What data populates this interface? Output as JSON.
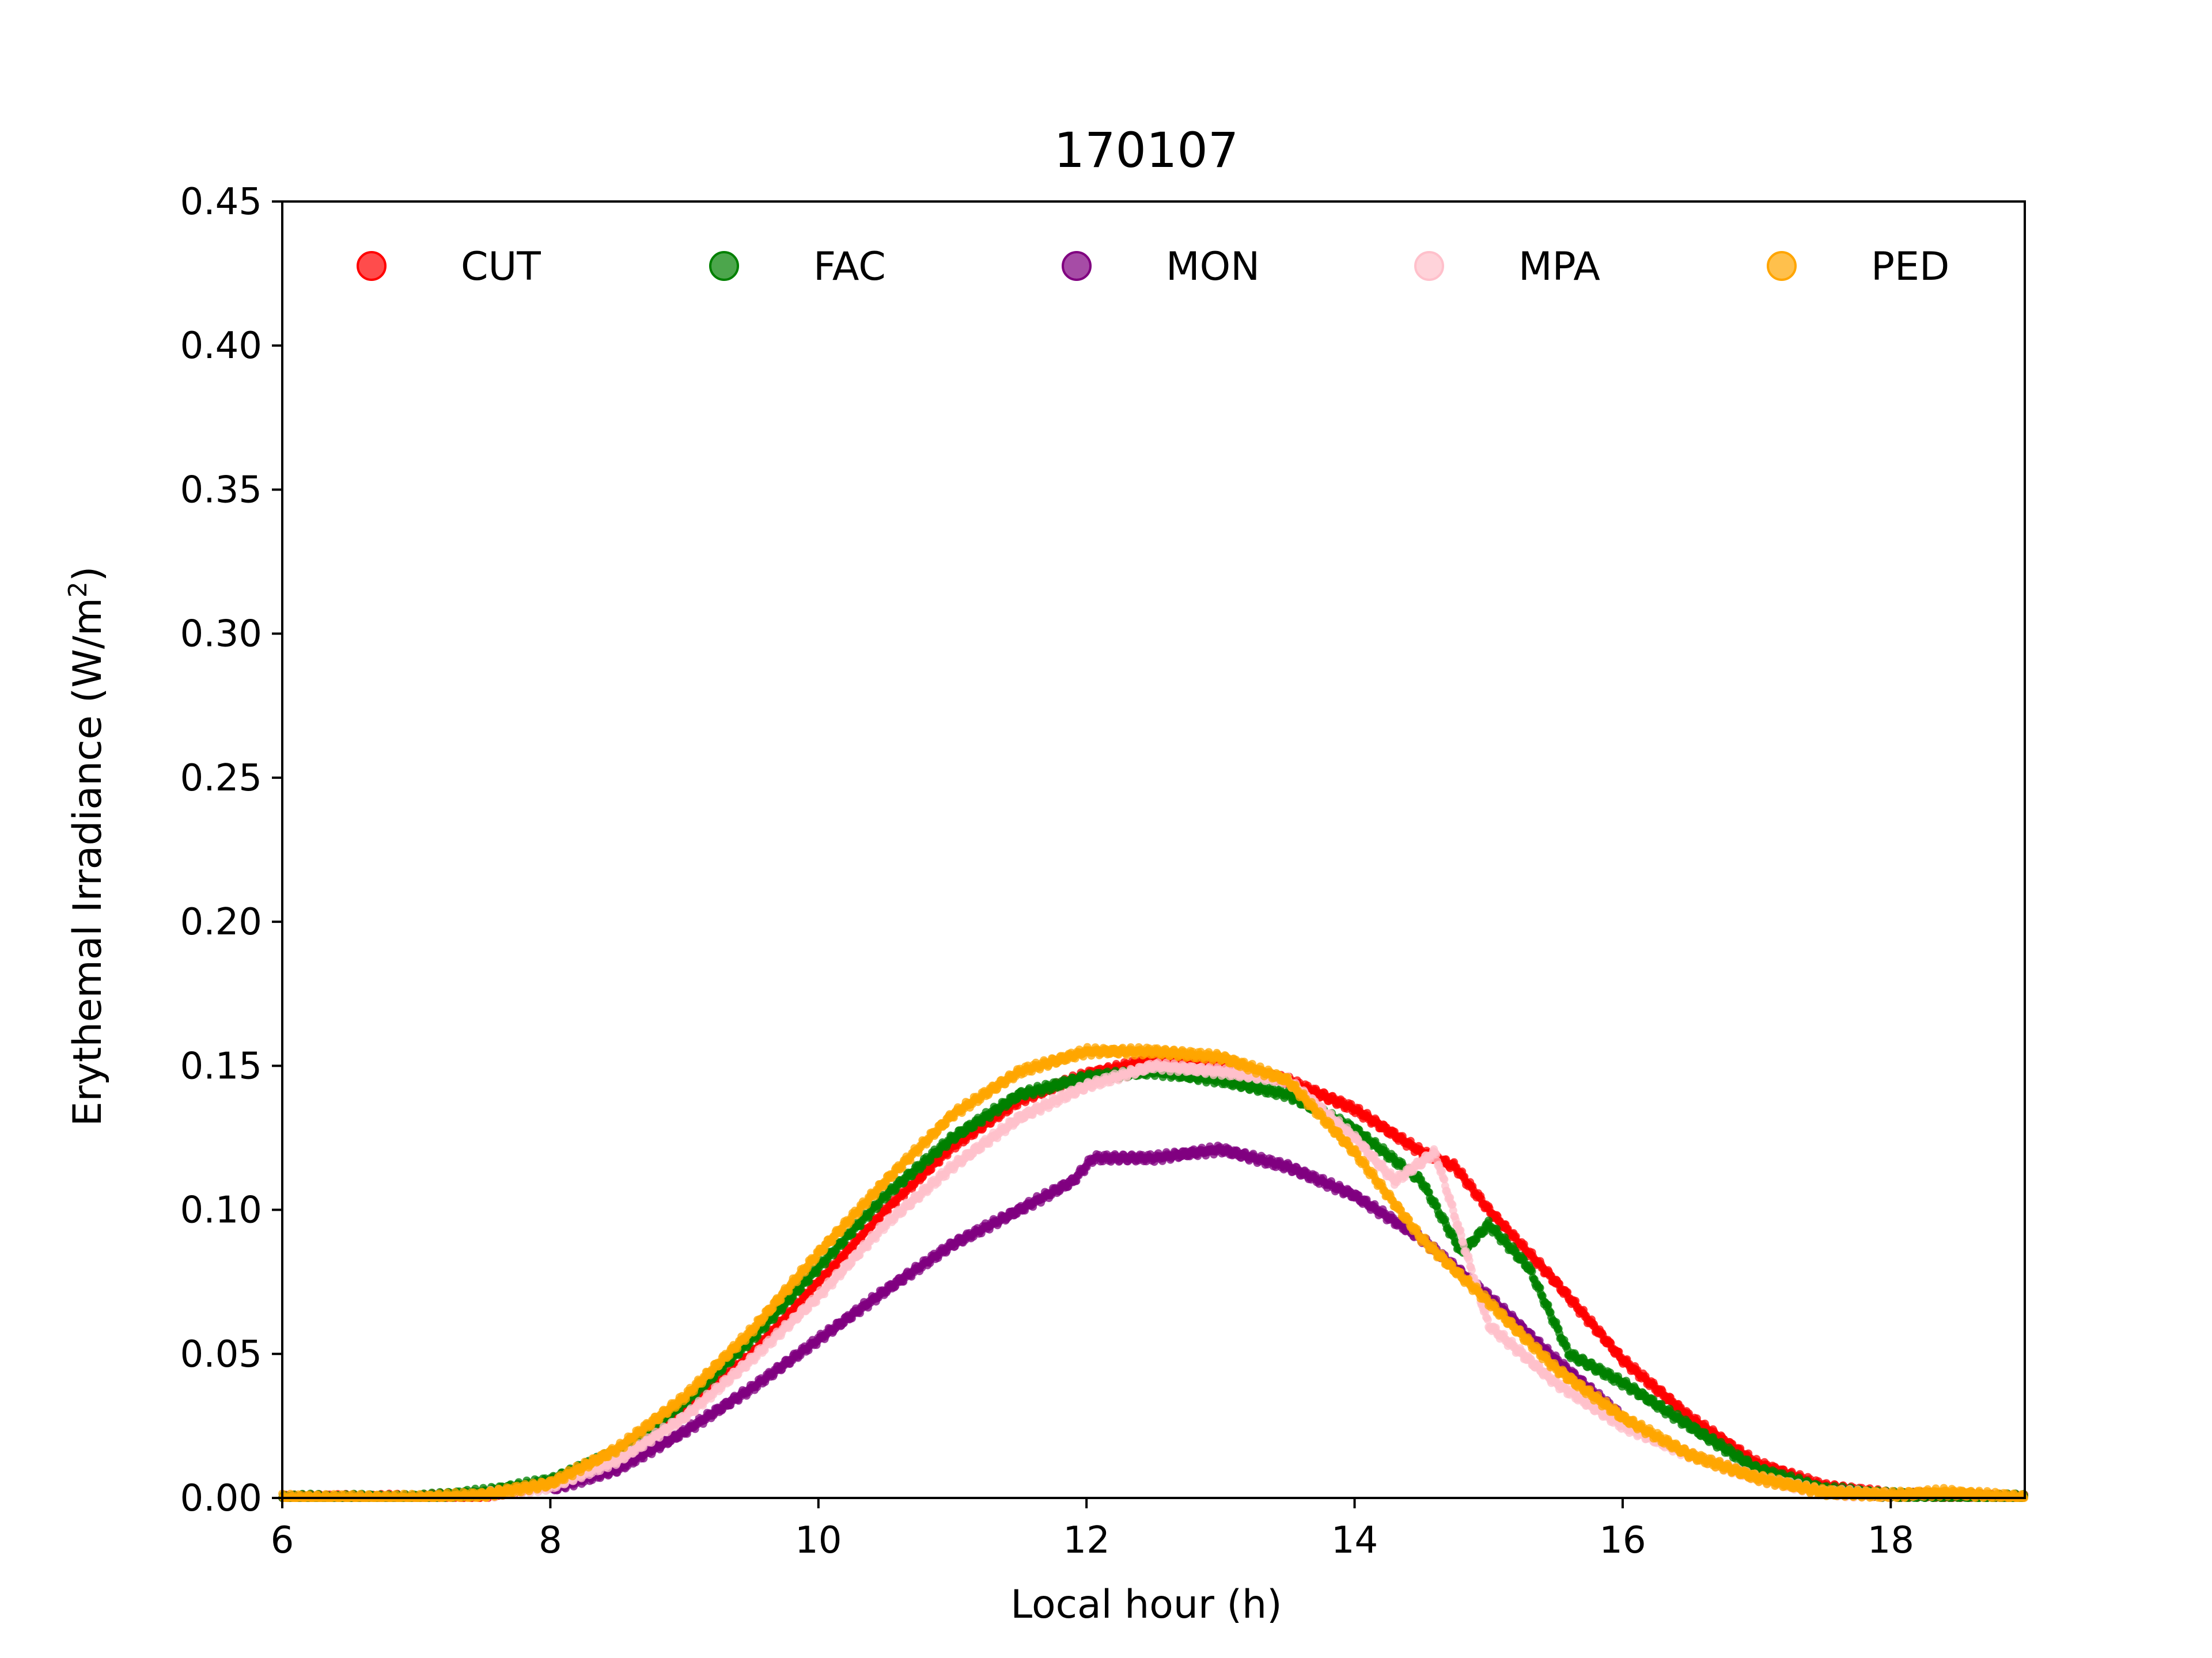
{
  "chart_data": {
    "type": "scatter",
    "title": "170107",
    "xlabel": "Local hour (h)",
    "ylabel": "Erythemal Irradiance (W/m",
    "ylabel_sup": "2",
    "ylabel_end": ")",
    "xlim": [
      6,
      19
    ],
    "ylim": [
      0,
      0.45
    ],
    "xticks": [
      6,
      8,
      10,
      12,
      14,
      16,
      18
    ],
    "yticks": [
      0.0,
      0.05,
      0.1,
      0.15,
      0.2,
      0.25,
      0.3,
      0.35,
      0.4,
      0.45
    ],
    "ytick_labels": [
      "0.00",
      "0.05",
      "0.10",
      "0.15",
      "0.20",
      "0.25",
      "0.30",
      "0.35",
      "0.40",
      "0.45"
    ],
    "legend_position": "top",
    "grid": false,
    "series": [
      {
        "name": "CUT",
        "color": "#ff0000",
        "x": [
          6,
          7,
          7.5,
          8,
          8.5,
          9,
          9.5,
          10,
          10.5,
          11,
          11.5,
          12,
          12.5,
          13,
          13.5,
          14,
          14.5,
          14.75,
          15,
          15.5,
          16,
          16.5,
          17,
          17.5,
          18,
          19
        ],
        "y": [
          0,
          0,
          0.001,
          0.005,
          0.015,
          0.03,
          0.05,
          0.075,
          0.1,
          0.122,
          0.138,
          0.147,
          0.152,
          0.15,
          0.145,
          0.135,
          0.12,
          0.115,
          0.1,
          0.075,
          0.048,
          0.028,
          0.012,
          0.004,
          0.001,
          0
        ]
      },
      {
        "name": "FAC",
        "color": "#008000",
        "x": [
          6,
          7,
          7.5,
          8,
          8.5,
          9,
          9.5,
          10,
          10.5,
          11,
          11.5,
          12,
          12.5,
          13,
          13.5,
          14,
          14.5,
          14.8,
          15,
          15.3,
          15.6,
          16,
          16.5,
          17,
          17.5,
          18,
          19
        ],
        "y": [
          0,
          0,
          0.002,
          0.006,
          0.016,
          0.033,
          0.055,
          0.08,
          0.105,
          0.125,
          0.14,
          0.146,
          0.148,
          0.145,
          0.14,
          0.128,
          0.11,
          0.085,
          0.095,
          0.08,
          0.05,
          0.04,
          0.025,
          0.01,
          0.003,
          0.001,
          0
        ]
      },
      {
        "name": "MON",
        "color": "#800080",
        "x": [
          8,
          8.5,
          9,
          9.5,
          10,
          10.5,
          11,
          11.5,
          11.9,
          12.05,
          12.5,
          13,
          13.5,
          14,
          14.5,
          15,
          15.5,
          16
        ],
        "y": [
          0.003,
          0.01,
          0.023,
          0.038,
          0.055,
          0.072,
          0.088,
          0.1,
          0.11,
          0.118,
          0.118,
          0.121,
          0.115,
          0.105,
          0.09,
          0.07,
          0.048,
          0.028
        ]
      },
      {
        "name": "MPA",
        "color": "#ffc0cb",
        "x": [
          7.5,
          8,
          8.5,
          9,
          9.5,
          10,
          10.5,
          11,
          11.5,
          12,
          12.5,
          13,
          13.5,
          14,
          14.3,
          14.6,
          15,
          15.5,
          16,
          16.5,
          17,
          17.5,
          18
        ],
        "y": [
          0.001,
          0.004,
          0.013,
          0.028,
          0.048,
          0.07,
          0.095,
          0.115,
          0.132,
          0.143,
          0.15,
          0.148,
          0.145,
          0.125,
          0.11,
          0.12,
          0.06,
          0.04,
          0.025,
          0.015,
          0.007,
          0.002,
          0.001
        ]
      },
      {
        "name": "PED",
        "color": "#ffa500",
        "x": [
          6,
          7,
          7.5,
          8,
          8.5,
          9,
          9.5,
          10,
          10.5,
          11,
          11.5,
          12,
          12.5,
          13,
          13.5,
          14,
          14.5,
          15,
          15.5,
          16,
          16.5,
          17,
          17.5,
          18,
          18.4,
          19
        ],
        "y": [
          0,
          0,
          0.001,
          0.005,
          0.017,
          0.035,
          0.058,
          0.085,
          0.11,
          0.133,
          0.148,
          0.155,
          0.155,
          0.153,
          0.145,
          0.12,
          0.09,
          0.068,
          0.045,
          0.028,
          0.015,
          0.007,
          0.002,
          0.001,
          0.002,
          0
        ]
      }
    ]
  }
}
